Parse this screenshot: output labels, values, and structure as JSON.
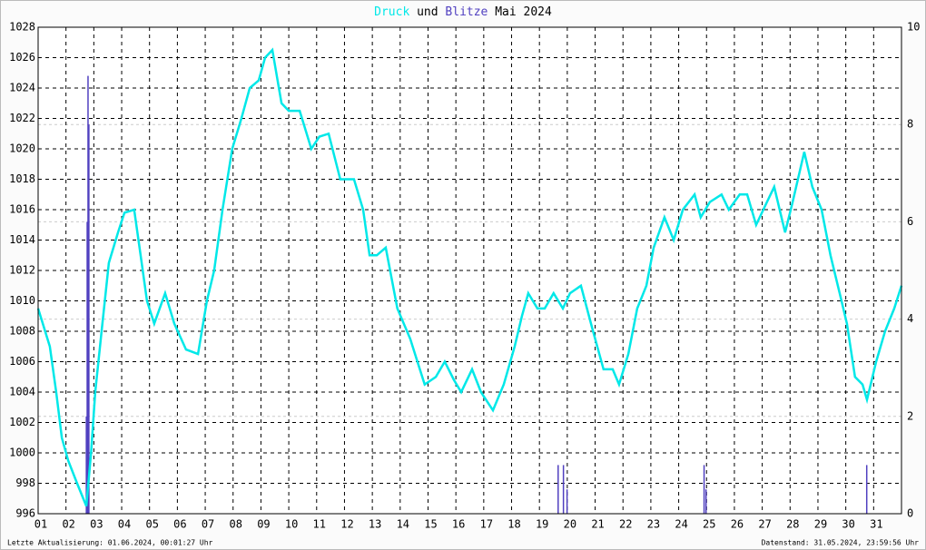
{
  "chart_data": {
    "type": "line",
    "title": [
      {
        "text": "Druck",
        "color": "#00e8e8"
      },
      {
        "text": "und",
        "color": "#000000"
      },
      {
        "text": "Blitze",
        "color": "#5040c0"
      },
      {
        "text": "Mai 2024",
        "color": "#000000"
      }
    ],
    "footer_left": "Letzte Aktualisierung: 01.06.2024, 00:01:27 Uhr",
    "footer_right": "Datenstand: 31.05.2024, 23:59:56 Uhr",
    "xlim": [
      1,
      32
    ],
    "xticks": [
      {
        "value": 1,
        "label": "01"
      },
      {
        "value": 2,
        "label": "02"
      },
      {
        "value": 3,
        "label": "03"
      },
      {
        "value": 4,
        "label": "04"
      },
      {
        "value": 5,
        "label": "05"
      },
      {
        "value": 6,
        "label": "06"
      },
      {
        "value": 7,
        "label": "07"
      },
      {
        "value": 8,
        "label": "08"
      },
      {
        "value": 9,
        "label": "09"
      },
      {
        "value": 10,
        "label": "10"
      },
      {
        "value": 11,
        "label": "11"
      },
      {
        "value": 12,
        "label": "12"
      },
      {
        "value": 13,
        "label": "13"
      },
      {
        "value": 14,
        "label": "14"
      },
      {
        "value": 15,
        "label": "15"
      },
      {
        "value": 16,
        "label": "16"
      },
      {
        "value": 17,
        "label": "17"
      },
      {
        "value": 18,
        "label": "18"
      },
      {
        "value": 19,
        "label": "19"
      },
      {
        "value": 20,
        "label": "20"
      },
      {
        "value": 21,
        "label": "21"
      },
      {
        "value": 22,
        "label": "22"
      },
      {
        "value": 23,
        "label": "23"
      },
      {
        "value": 24,
        "label": "24"
      },
      {
        "value": 25,
        "label": "25"
      },
      {
        "value": 26,
        "label": "26"
      },
      {
        "value": 27,
        "label": "27"
      },
      {
        "value": 28,
        "label": "28"
      },
      {
        "value": 29,
        "label": "29"
      },
      {
        "value": 30,
        "label": "30"
      },
      {
        "value": 31,
        "label": "31"
      }
    ],
    "ylim": [
      996,
      1028
    ],
    "yticks": [
      996,
      998,
      1000,
      1002,
      1004,
      1006,
      1008,
      1010,
      1012,
      1014,
      1016,
      1018,
      1020,
      1022,
      1024,
      1026,
      1028
    ],
    "y2lim": [
      0,
      10
    ],
    "y2ticks": [
      0,
      2,
      4,
      6,
      8,
      10
    ],
    "grid": true,
    "series": [
      {
        "name": "Druck",
        "type": "line",
        "color": "#00e8e8",
        "x": [
          1.0,
          1.42,
          1.65,
          1.85,
          2.08,
          2.4,
          2.73,
          2.9,
          3.05,
          3.28,
          3.54,
          3.87,
          4.1,
          4.45,
          4.68,
          4.91,
          5.17,
          5.56,
          5.89,
          6.31,
          6.74,
          7.06,
          7.32,
          7.62,
          7.97,
          8.3,
          8.6,
          8.92,
          9.15,
          9.41,
          9.74,
          10.0,
          10.39,
          10.81,
          11.1,
          11.43,
          11.85,
          12.34,
          12.67,
          12.9,
          13.16,
          13.48,
          13.9,
          14.36,
          14.62,
          14.88,
          15.28,
          15.6,
          15.93,
          16.19,
          16.58,
          16.9,
          17.33,
          17.72,
          18.11,
          18.37,
          18.6,
          18.93,
          19.19,
          19.51,
          19.84,
          20.1,
          20.49,
          20.88,
          21.3,
          21.63,
          21.86,
          22.19,
          22.51,
          22.84,
          23.1,
          23.49,
          23.82,
          24.15,
          24.57,
          24.79,
          25.12,
          25.54,
          25.8,
          26.19,
          26.46,
          26.78,
          27.17,
          27.43,
          27.82,
          28.09,
          28.51,
          28.8,
          29.13,
          29.45,
          29.78,
          30.04,
          30.33,
          30.6,
          30.76,
          31.09,
          31.41,
          31.74,
          32.0
        ],
        "values": [
          1009.5,
          1007,
          1004,
          1001,
          999.5,
          998,
          996.5,
          1000,
          1004,
          1008,
          1012.5,
          1014.5,
          1015.8,
          1016,
          1013,
          1010,
          1008.5,
          1010.5,
          1008.5,
          1006.8,
          1006.5,
          1010,
          1012,
          1016,
          1020,
          1022,
          1024,
          1024.5,
          1026,
          1026.5,
          1023,
          1022.5,
          1022.5,
          1020,
          1020.8,
          1021,
          1018,
          1018,
          1016,
          1013,
          1013,
          1013.5,
          1009.5,
          1007.5,
          1006,
          1004.5,
          1005,
          1006,
          1004.8,
          1004,
          1005.5,
          1004,
          1002.8,
          1004.5,
          1007,
          1009,
          1010.5,
          1009.5,
          1009.5,
          1010.5,
          1009.5,
          1010.5,
          1011,
          1008.3,
          1005.5,
          1005.5,
          1004.5,
          1006.5,
          1009.5,
          1011,
          1013.5,
          1015.5,
          1014,
          1016,
          1017,
          1015.5,
          1016.5,
          1017,
          1016,
          1017,
          1017,
          1015,
          1016.5,
          1017.5,
          1014.5,
          1016.5,
          1019.8,
          1017.5,
          1016,
          1013,
          1010.5,
          1008.5,
          1005,
          1004.5,
          1003.5,
          1006,
          1008,
          1009.5,
          1011
        ]
      },
      {
        "name": "Blitze",
        "type": "bar",
        "axis": "y2",
        "color": "#5040c0",
        "x": [
          2.74,
          2.77,
          2.8,
          2.83,
          19.68,
          19.87,
          20.0,
          24.92,
          24.99,
          30.76
        ],
        "values": [
          2,
          6,
          9,
          8,
          1,
          1,
          0.5,
          1,
          0.5,
          1
        ]
      }
    ]
  }
}
